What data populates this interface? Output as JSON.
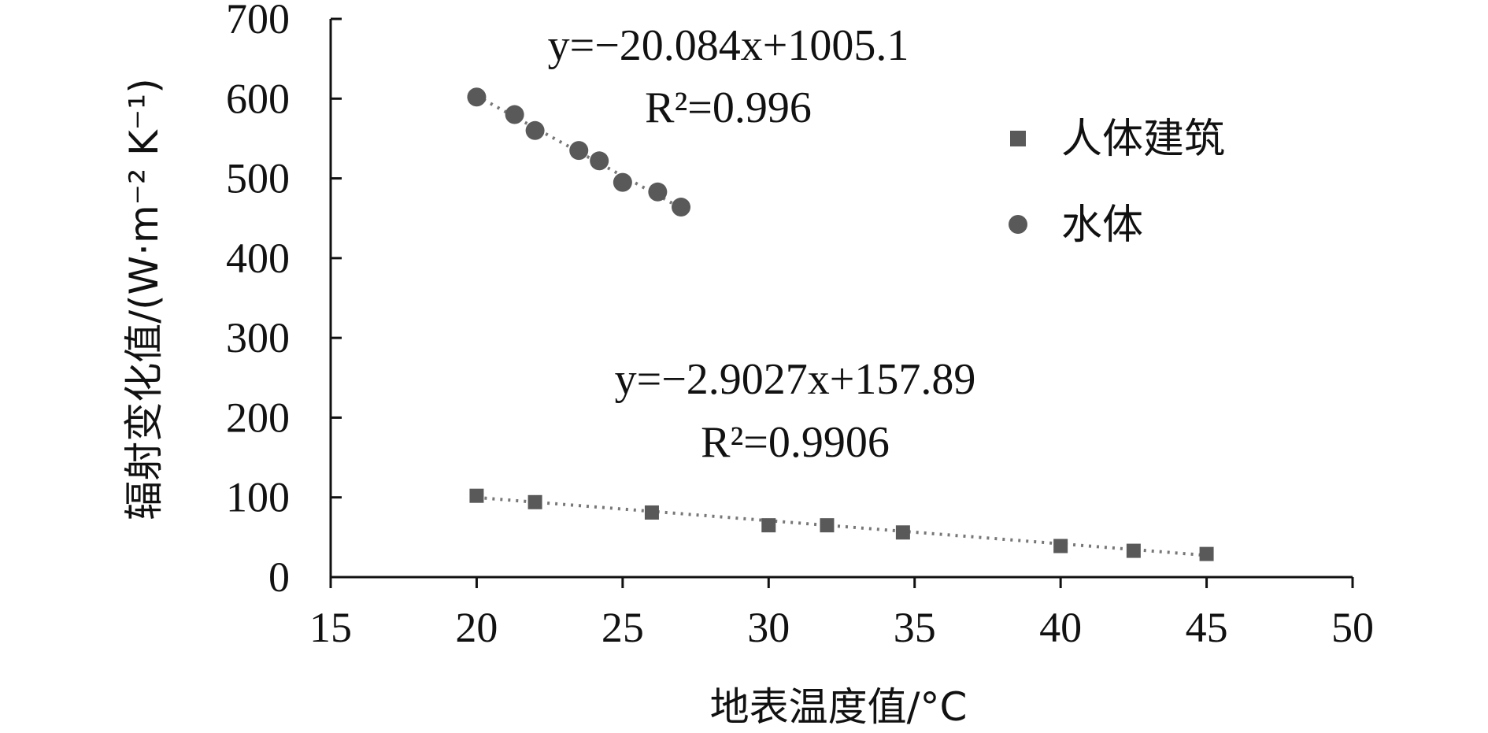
{
  "chart_data": {
    "type": "scatter",
    "xlabel": "地表温度值/°C",
    "ylabel": "辐射变化值/(W·m⁻² K⁻¹)",
    "xlim": [
      15,
      50
    ],
    "ylim": [
      0,
      700
    ],
    "x_ticks": [
      "15",
      "20",
      "25",
      "30",
      "35",
      "40",
      "45",
      "50"
    ],
    "y_ticks": [
      "0",
      "100",
      "200",
      "300",
      "400",
      "500",
      "600",
      "700"
    ],
    "series": [
      {
        "name": "人体建筑",
        "marker": "square",
        "color": "#595959",
        "x": [
          20,
          22,
          26,
          30,
          32,
          34.6,
          40,
          42.5,
          45
        ],
        "y": [
          102,
          94,
          81,
          65,
          65,
          56,
          39,
          33,
          29
        ],
        "trendline": {
          "slope": -2.9027,
          "intercept": 157.89,
          "x_range": [
            20,
            45
          ]
        },
        "equation_y": "y=−2.9027x+157.89",
        "equation_r2": "R²=0.9906"
      },
      {
        "name": "水体",
        "marker": "circle",
        "color": "#595959",
        "x": [
          20,
          21.3,
          22,
          23.5,
          24.2,
          25,
          26.2,
          27
        ],
        "y": [
          602,
          580,
          560,
          535,
          522,
          495,
          483,
          464
        ],
        "trendline": {
          "slope": -20.084,
          "intercept": 1005.1,
          "x_range": [
            20,
            27
          ]
        },
        "equation_y": "y=−20.084x+1005.1",
        "equation_r2": "R²=0.996"
      }
    ],
    "legend_position": "top-right",
    "grid": false
  }
}
